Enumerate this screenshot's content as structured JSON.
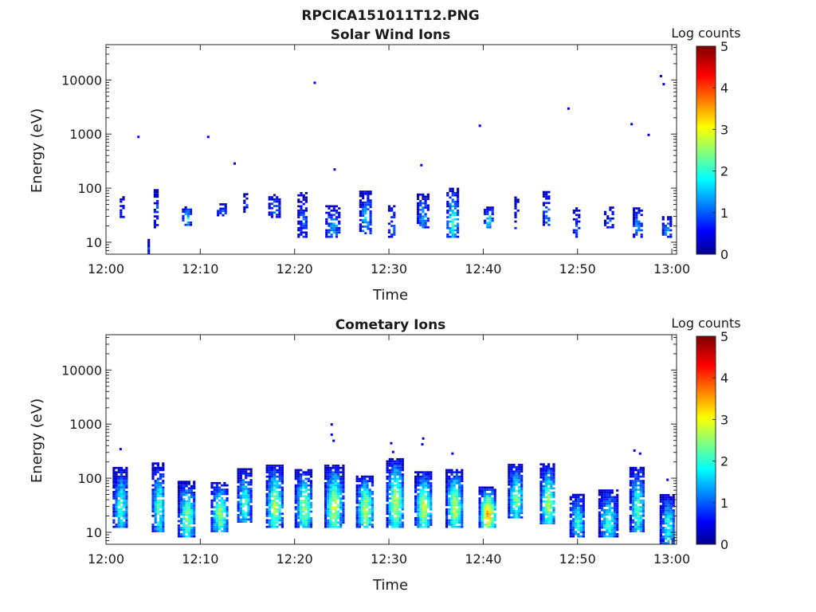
{
  "figure_title": "RPCICA151011T12.PNG",
  "chart_data": [
    {
      "type": "heatmap",
      "title": "Solar Wind Ions",
      "xlabel": "Time",
      "ylabel": "Energy (eV)",
      "x_ticks": [
        "12:00",
        "12:10",
        "12:20",
        "12:30",
        "12:40",
        "12:50",
        "13:00"
      ],
      "x_tick_minutes": [
        0,
        10,
        20,
        30,
        40,
        50,
        60
      ],
      "xlim_minutes": [
        0,
        60.5
      ],
      "y_scale": "log",
      "ylim": [
        6,
        45000
      ],
      "y_ticks": [
        "10",
        "100",
        "1000",
        "10000"
      ],
      "y_tick_values": [
        10,
        100,
        1000,
        10000
      ],
      "colorbar": {
        "label": "Log counts",
        "ticks": [
          "0",
          "1",
          "2",
          "3",
          "4",
          "5"
        ],
        "range": [
          0,
          5
        ],
        "colormap": "jet"
      },
      "bursts": [
        {
          "t": 1.6,
          "w": 0.3,
          "emin": 28,
          "emax": 70,
          "peak": 1.0,
          "sparse": 0.5
        },
        {
          "t": 4.5,
          "w": 0.2,
          "emin": 6,
          "emax": 11,
          "peak": 0.9,
          "sparse": 0.3
        },
        {
          "t": 5.3,
          "w": 0.5,
          "emin": 18,
          "emax": 95,
          "peak": 1.0,
          "sparse": 0.4
        },
        {
          "t": 8.5,
          "w": 0.9,
          "emin": 20,
          "emax": 45,
          "peak": 1.8,
          "sparse": 0.4
        },
        {
          "t": 12.2,
          "w": 0.9,
          "emin": 30,
          "emax": 48,
          "peak": 1.2,
          "sparse": 0.3
        },
        {
          "t": 14.8,
          "w": 0.5,
          "emin": 35,
          "emax": 75,
          "peak": 0.8,
          "sparse": 0.5
        },
        {
          "t": 17.8,
          "w": 1.2,
          "emin": 28,
          "emax": 75,
          "peak": 1.2,
          "sparse": 0.35
        },
        {
          "t": 20.8,
          "w": 1.0,
          "emin": 12,
          "emax": 80,
          "peak": 1.1,
          "sparse": 0.35
        },
        {
          "t": 24.0,
          "w": 1.5,
          "emin": 12,
          "emax": 48,
          "peak": 1.5,
          "sparse": 0.35
        },
        {
          "t": 27.5,
          "w": 1.3,
          "emin": 14,
          "emax": 85,
          "peak": 1.7,
          "sparse": 0.35
        },
        {
          "t": 30.3,
          "w": 0.8,
          "emin": 12,
          "emax": 45,
          "peak": 1.2,
          "sparse": 0.35
        },
        {
          "t": 33.5,
          "w": 1.1,
          "emin": 18,
          "emax": 75,
          "peak": 1.5,
          "sparse": 0.35
        },
        {
          "t": 36.7,
          "w": 1.2,
          "emin": 12,
          "emax": 95,
          "peak": 2.2,
          "sparse": 0.3
        },
        {
          "t": 40.5,
          "w": 0.9,
          "emin": 18,
          "emax": 45,
          "peak": 1.9,
          "sparse": 0.3
        },
        {
          "t": 43.5,
          "w": 0.4,
          "emin": 12,
          "emax": 65,
          "peak": 0.9,
          "sparse": 0.5
        },
        {
          "t": 46.7,
          "w": 0.8,
          "emin": 20,
          "emax": 85,
          "peak": 1.2,
          "sparse": 0.35
        },
        {
          "t": 49.8,
          "w": 0.6,
          "emin": 12,
          "emax": 42,
          "peak": 0.9,
          "sparse": 0.5
        },
        {
          "t": 53.3,
          "w": 1.0,
          "emin": 18,
          "emax": 45,
          "peak": 0.9,
          "sparse": 0.55
        },
        {
          "t": 56.3,
          "w": 0.9,
          "emin": 12,
          "emax": 42,
          "peak": 1.4,
          "sparse": 0.35
        },
        {
          "t": 59.4,
          "w": 0.9,
          "emin": 12,
          "emax": 28,
          "peak": 1.5,
          "sparse": 0.35
        }
      ],
      "dots": [
        {
          "t": 3.4,
          "e": 900
        },
        {
          "t": 10.8,
          "e": 900
        },
        {
          "t": 13.6,
          "e": 290
        },
        {
          "t": 22.1,
          "e": 9000
        },
        {
          "t": 24.2,
          "e": 225
        },
        {
          "t": 33.4,
          "e": 270
        },
        {
          "t": 39.6,
          "e": 1450
        },
        {
          "t": 49.0,
          "e": 3000
        },
        {
          "t": 55.7,
          "e": 1550
        },
        {
          "t": 57.5,
          "e": 980
        },
        {
          "t": 58.8,
          "e": 12000
        },
        {
          "t": 59.1,
          "e": 8500
        }
      ]
    },
    {
      "type": "heatmap",
      "title": "Cometary Ions",
      "xlabel": "Time",
      "ylabel": "Energy (eV)",
      "x_ticks": [
        "12:00",
        "12:10",
        "12:20",
        "12:30",
        "12:40",
        "12:50",
        "13:00"
      ],
      "x_tick_minutes": [
        0,
        10,
        20,
        30,
        40,
        50,
        60
      ],
      "xlim_minutes": [
        0,
        60.5
      ],
      "y_scale": "log",
      "ylim": [
        6,
        45000
      ],
      "y_ticks": [
        "10",
        "100",
        "1000",
        "10000"
      ],
      "y_tick_values": [
        10,
        100,
        1000,
        10000
      ],
      "colorbar": {
        "label": "Log counts",
        "ticks": [
          "0",
          "1",
          "2",
          "3",
          "4",
          "5"
        ],
        "range": [
          0,
          5
        ],
        "colormap": "jet"
      },
      "bursts": [
        {
          "t": 1.5,
          "w": 1.6,
          "emin": 12,
          "emax": 150,
          "peak": 2.1,
          "sparse": 0.15
        },
        {
          "t": 5.5,
          "w": 1.3,
          "emin": 10,
          "emax": 180,
          "peak": 2.3,
          "sparse": 0.15
        },
        {
          "t": 8.5,
          "w": 1.8,
          "emin": 8,
          "emax": 85,
          "peak": 2.6,
          "sparse": 0.15
        },
        {
          "t": 12.0,
          "w": 1.8,
          "emin": 10,
          "emax": 80,
          "peak": 2.7,
          "sparse": 0.15
        },
        {
          "t": 14.6,
          "w": 1.4,
          "emin": 15,
          "emax": 140,
          "peak": 2.3,
          "sparse": 0.15
        },
        {
          "t": 17.8,
          "w": 1.7,
          "emin": 12,
          "emax": 170,
          "peak": 2.8,
          "sparse": 0.12
        },
        {
          "t": 20.9,
          "w": 1.8,
          "emin": 12,
          "emax": 140,
          "peak": 2.7,
          "sparse": 0.12
        },
        {
          "t": 24.1,
          "w": 1.9,
          "emin": 12,
          "emax": 170,
          "peak": 2.9,
          "sparse": 0.12
        },
        {
          "t": 27.4,
          "w": 1.8,
          "emin": 12,
          "emax": 110,
          "peak": 2.9,
          "sparse": 0.12
        },
        {
          "t": 30.6,
          "w": 1.8,
          "emin": 12,
          "emax": 230,
          "peak": 2.9,
          "sparse": 0.12
        },
        {
          "t": 33.6,
          "w": 1.8,
          "emin": 12,
          "emax": 130,
          "peak": 2.9,
          "sparse": 0.12
        },
        {
          "t": 36.9,
          "w": 1.8,
          "emin": 12,
          "emax": 140,
          "peak": 2.9,
          "sparse": 0.12
        },
        {
          "t": 40.4,
          "w": 1.8,
          "emin": 12,
          "emax": 65,
          "peak": 3.6,
          "sparse": 0.1
        },
        {
          "t": 43.4,
          "w": 1.6,
          "emin": 18,
          "emax": 170,
          "peak": 2.5,
          "sparse": 0.12
        },
        {
          "t": 46.8,
          "w": 1.6,
          "emin": 14,
          "emax": 180,
          "peak": 2.7,
          "sparse": 0.12
        },
        {
          "t": 49.9,
          "w": 1.5,
          "emin": 8,
          "emax": 50,
          "peak": 2.1,
          "sparse": 0.15
        },
        {
          "t": 53.2,
          "w": 2.0,
          "emin": 8,
          "emax": 60,
          "peak": 2.2,
          "sparse": 0.15
        },
        {
          "t": 56.3,
          "w": 1.6,
          "emin": 10,
          "emax": 160,
          "peak": 2.3,
          "sparse": 0.12
        },
        {
          "t": 59.5,
          "w": 1.6,
          "emin": 6,
          "emax": 50,
          "peak": 2.0,
          "sparse": 0.15
        }
      ],
      "dots": [
        {
          "t": 1.5,
          "e": 350
        },
        {
          "t": 23.9,
          "e": 1000
        },
        {
          "t": 23.9,
          "e": 650
        },
        {
          "t": 24.1,
          "e": 500
        },
        {
          "t": 30.2,
          "e": 450
        },
        {
          "t": 30.4,
          "e": 310
        },
        {
          "t": 33.6,
          "e": 550
        },
        {
          "t": 33.5,
          "e": 430
        },
        {
          "t": 36.7,
          "e": 290
        },
        {
          "t": 56.0,
          "e": 330
        },
        {
          "t": 56.6,
          "e": 290
        },
        {
          "t": 59.5,
          "e": 95
        }
      ]
    }
  ]
}
